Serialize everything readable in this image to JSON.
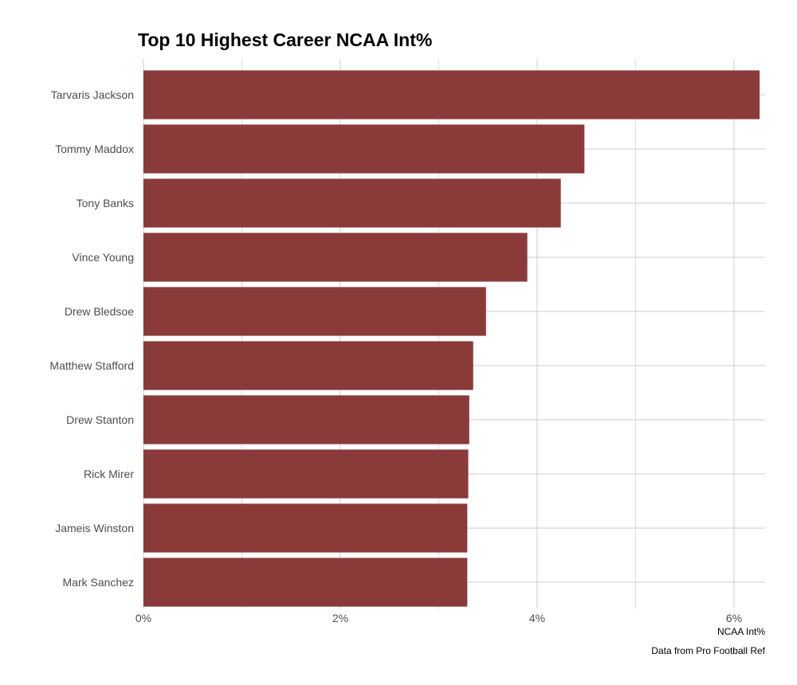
{
  "chart_data": {
    "type": "bar",
    "orientation": "horizontal",
    "title": "Top 10 Highest Career NCAA Int%",
    "xlabel": "NCAA Int%",
    "ylabel": "",
    "caption": "Data from Pro Football Ref",
    "categories": [
      "Tarvaris Jackson",
      "Tommy Maddox",
      "Tony Banks",
      "Vince Young",
      "Drew Bledsoe",
      "Matthew Stafford",
      "Drew Stanton",
      "Rick Mirer",
      "Jameis Winston",
      "Mark Sanchez"
    ],
    "values": [
      6.26,
      4.48,
      4.24,
      3.9,
      3.48,
      3.35,
      3.31,
      3.3,
      3.29,
      3.29
    ],
    "xlim": [
      0,
      6.5
    ],
    "x_ticks": [
      0,
      2,
      4,
      6
    ],
    "x_tick_labels": [
      "0%",
      "2%",
      "4%",
      "6%"
    ],
    "x_minor_ticks": [
      1,
      3,
      5
    ],
    "grid": true,
    "bar_color": "#8b3a3a"
  }
}
